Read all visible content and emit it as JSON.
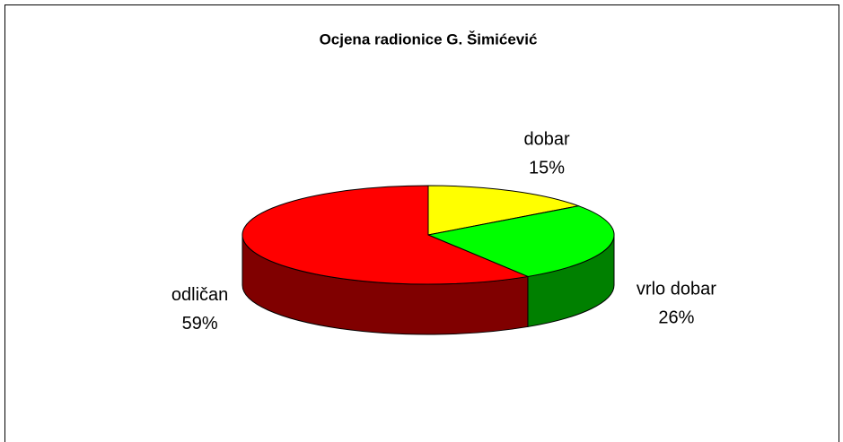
{
  "chart_data": {
    "type": "pie",
    "title": "Ocjena radionice G. Šimićević",
    "categories": [
      "dobar",
      "vrlo dobar",
      "odličan"
    ],
    "values": [
      15,
      26,
      59
    ],
    "value_labels": [
      "15%",
      "26%",
      "59%"
    ],
    "colors": [
      "#ffff00",
      "#00ff00",
      "#ff0000"
    ]
  }
}
